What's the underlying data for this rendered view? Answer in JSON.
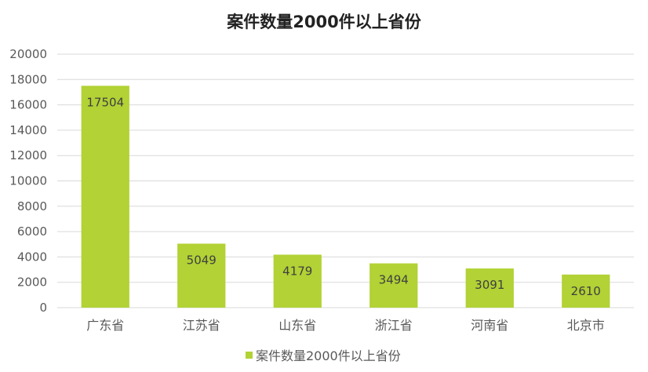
{
  "chart_data": {
    "type": "bar",
    "title": "案件数量2000件以上省份",
    "categories": [
      "广东省",
      "江苏省",
      "山东省",
      "浙江省",
      "河南省",
      "北京市"
    ],
    "series": [
      {
        "name": "案件数量2000件以上省份",
        "values": [
          17504,
          5049,
          4179,
          3494,
          3091,
          2610
        ],
        "color": "#b2d235"
      }
    ],
    "y_ticks": [
      "0",
      "2000",
      "4000",
      "6000",
      "8000",
      "10000",
      "12000",
      "14000",
      "16000",
      "18000",
      "20000"
    ],
    "ylim": [
      0,
      20000
    ],
    "xlabel": "",
    "ylabel": "",
    "grid": true,
    "gridline_color": "#d9d9d9",
    "data_labels": [
      "17504",
      "5049",
      "4179",
      "3494",
      "3091",
      "2610"
    ],
    "legend_position": "bottom"
  }
}
